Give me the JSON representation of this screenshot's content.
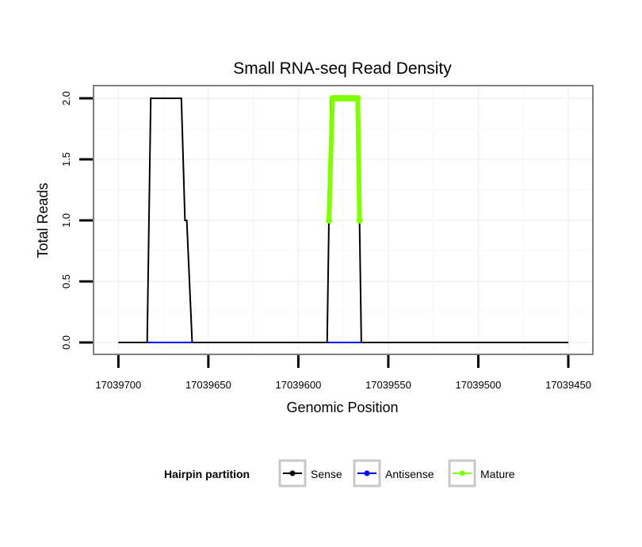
{
  "chart_data": {
    "type": "line",
    "title": "Small RNA-seq Read Density",
    "xlabel": "Genomic Position",
    "ylabel": "Total Reads",
    "xlim": [
      17039705,
      17039450
    ],
    "ylim": [
      0,
      2
    ],
    "x_ticks": [
      17039700,
      17039650,
      17039600,
      17039550,
      17039500,
      17039450
    ],
    "x_tick_labels": [
      "17039700",
      "17039650",
      "17039600",
      "17039550",
      "17039500",
      "17039450"
    ],
    "y_ticks": [
      0,
      0.5,
      1,
      1.5,
      2
    ],
    "y_tick_labels": [
      "0.0",
      "0.5",
      "1.0",
      "1.5",
      "2.0"
    ],
    "grid": true,
    "legend": {
      "title": "Hairpin partition",
      "position": "bottom",
      "entries": [
        "Sense",
        "Antisense",
        "Mature"
      ]
    },
    "series": [
      {
        "name": "Sense",
        "color": "#000000",
        "x": [
          17039700,
          17039684,
          17039682,
          17039665,
          17039663,
          17039662,
          17039659,
          17039584,
          17039582,
          17039567,
          17039565,
          17039450
        ],
        "y": [
          0,
          0,
          2,
          2,
          1,
          1,
          0,
          0,
          2,
          2,
          0,
          0
        ]
      },
      {
        "name": "Antisense",
        "color": "#0000ff",
        "x": [
          17039684,
          17039659,
          17039584,
          17039565
        ],
        "y": [
          0,
          0,
          0,
          0
        ],
        "segments": [
          [
            0,
            1
          ],
          [
            2,
            3
          ]
        ]
      },
      {
        "name": "Mature",
        "color": "#7fff00",
        "x": [
          17039583,
          17039581,
          17039580,
          17039579,
          17039578,
          17039577,
          17039576,
          17039575,
          17039574,
          17039573,
          17039572,
          17039571,
          17039570,
          17039569,
          17039568,
          17039567,
          17039566
        ],
        "y": [
          1,
          2,
          2,
          2,
          2,
          2,
          2,
          2,
          2,
          2,
          2,
          2,
          2,
          2,
          2,
          2,
          1
        ]
      }
    ]
  }
}
